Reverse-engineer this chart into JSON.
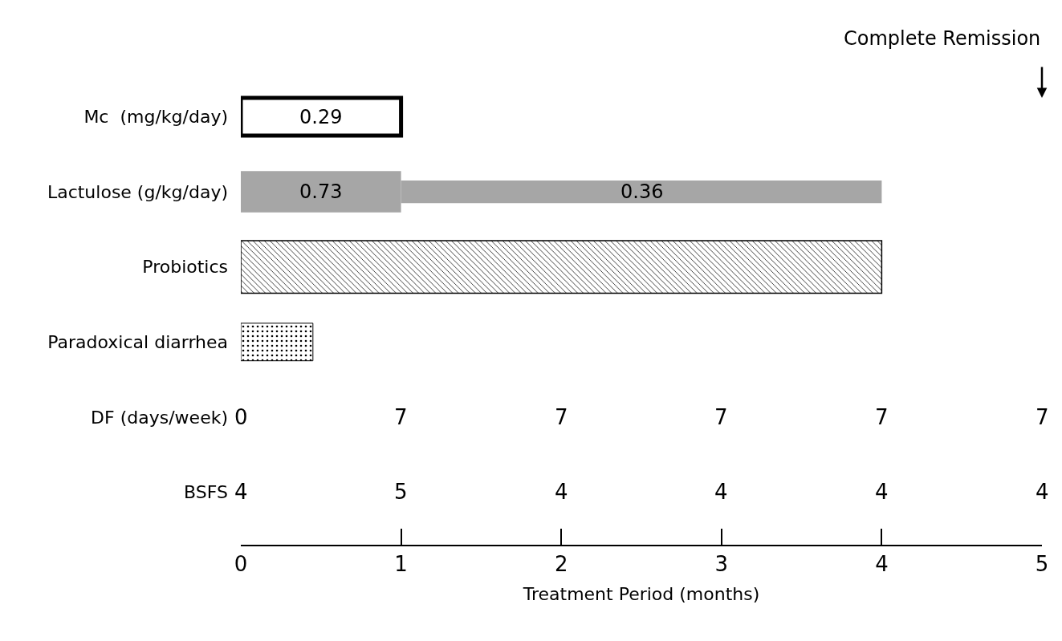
{
  "chart_data": {
    "type": "bar",
    "orientation": "horizontal",
    "xlabel": "Treatment Period (months)",
    "categories": [
      "Mc  (mg/kg/day)",
      "Lactulose (g/kg/day)",
      "Probiotics",
      "Paradoxical diarrhea",
      "DF (days/week)",
      "BSFS"
    ],
    "series": [
      {
        "color": "#ffffff",
        "values": [
          1,
          null,
          null,
          null,
          null,
          null
        ],
        "base": [
          0,
          null,
          null,
          null,
          null,
          null
        ]
      },
      {
        "color": "#a6a6a6",
        "values": [
          null,
          1,
          null,
          null,
          null,
          null
        ],
        "base": [
          null,
          0,
          null,
          null,
          null,
          null
        ]
      },
      {
        "color": "#a6a6a6",
        "values": [
          null,
          3,
          null,
          null,
          null,
          null
        ],
        "base": [
          null,
          1,
          null,
          null,
          null,
          null
        ]
      },
      {
        "color": "#000000",
        "values": [
          null,
          null,
          4,
          null,
          null,
          null
        ],
        "base": [
          null,
          null,
          0,
          null,
          null,
          null
        ]
      },
      {
        "color": "#000000",
        "values": [
          null,
          null,
          null,
          0.45,
          null,
          null
        ],
        "base": [
          null,
          null,
          null,
          0,
          null,
          null
        ]
      }
    ],
    "xlim": [
      0,
      5
    ],
    "xticks": [
      0,
      1,
      2,
      3,
      4,
      5
    ],
    "grid": false,
    "annotations": [
      "Complete Remission",
      "0.29",
      "0.73",
      "0.36",
      "0",
      "7",
      "7",
      "7",
      "7",
      "7",
      "4",
      "5",
      "4",
      "4",
      "4",
      "4"
    ]
  }
}
